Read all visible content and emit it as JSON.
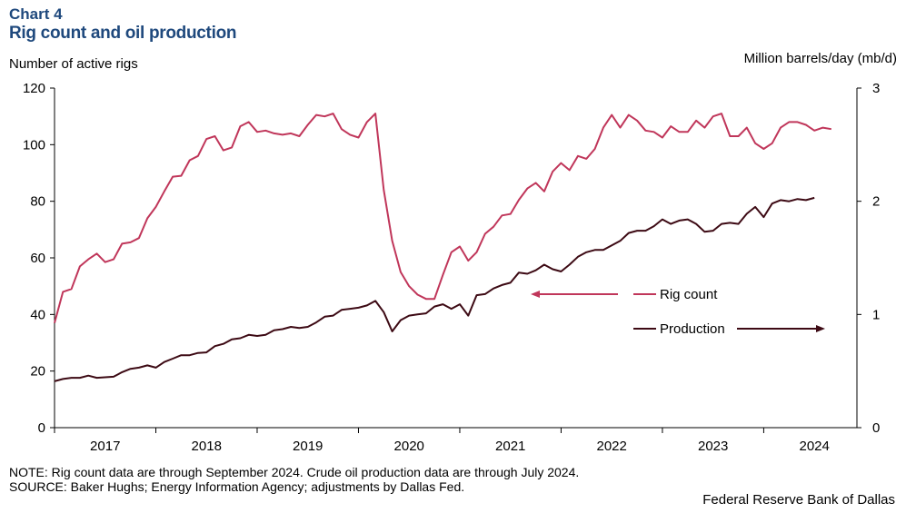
{
  "header": {
    "chart_number": "Chart 4",
    "title": "Rig count and oil production"
  },
  "axes": {
    "left_label": "Number of active rigs",
    "right_label": "Million barrels/day (mb/d)"
  },
  "footer": {
    "note": "NOTE: Rig count data are through September 2024. Crude oil production data are through July 2024.",
    "source": "SOURCE: Baker Hughs; Energy Information Agency; adjustments by Dallas Fed.",
    "credit": "Federal Reserve Bank of Dallas"
  },
  "colors": {
    "rig_count": "#c0365a",
    "production": "#3d0a14",
    "axis": "#000000"
  },
  "chart_data": {
    "type": "line",
    "title": "Rig count and oil production",
    "xlabel": "",
    "ylabel_left": "Number of active rigs",
    "ylabel_right": "Million barrels/day (mb/d)",
    "ylim_left": [
      0,
      120
    ],
    "ylim_right": [
      0,
      3
    ],
    "yticks_left": [
      "0",
      "20",
      "40",
      "60",
      "80",
      "100",
      "120"
    ],
    "yticks_right": [
      "0",
      "1",
      "2",
      "3"
    ],
    "xlim": [
      2017.0,
      2024.92
    ],
    "x_tick_labels": [
      "2017",
      "2018",
      "2019",
      "2020",
      "2021",
      "2022",
      "2023",
      "2024"
    ],
    "legend_position": "center-right",
    "annotations": [
      {
        "series": "Rig count",
        "arrow_direction": "left",
        "axis": "left"
      },
      {
        "series": "Production",
        "arrow_direction": "right",
        "axis": "right"
      }
    ],
    "series": [
      {
        "name": "Rig count",
        "axis": "left",
        "start": 2017.0,
        "step_months": 1,
        "values": [
          37,
          48,
          49,
          57,
          59.5,
          61.5,
          58.5,
          59.5,
          65,
          65.5,
          67,
          74,
          78,
          83.5,
          88.7,
          89,
          94.5,
          96,
          102,
          103,
          98,
          99,
          106.5,
          108,
          104.5,
          105,
          104,
          103.5,
          104,
          103,
          107,
          110.5,
          110,
          111,
          105.5,
          103.5,
          102.5,
          108,
          111,
          84,
          66,
          55,
          50,
          47,
          45.5,
          45.5,
          54,
          62,
          64,
          59,
          62,
          68.5,
          71,
          75,
          75.5,
          80.5,
          84.5,
          86.5,
          83.5,
          90.5,
          93.5,
          91,
          96,
          95,
          98.5,
          106,
          110.5,
          106,
          110.5,
          108.5,
          105,
          104.5,
          102.5,
          106.5,
          104.5,
          104.5,
          108.5,
          106,
          110,
          111,
          103,
          103,
          106,
          100.5,
          98.5,
          100.5,
          106,
          108,
          108,
          107,
          105,
          106,
          105.5
        ]
      },
      {
        "name": "Production",
        "axis": "right",
        "start": 2017.0,
        "step_months": 1,
        "values": [
          0.41,
          0.43,
          0.44,
          0.44,
          0.46,
          0.44,
          0.445,
          0.45,
          0.49,
          0.52,
          0.53,
          0.55,
          0.53,
          0.58,
          0.61,
          0.64,
          0.64,
          0.66,
          0.665,
          0.72,
          0.74,
          0.78,
          0.79,
          0.82,
          0.81,
          0.82,
          0.86,
          0.87,
          0.89,
          0.88,
          0.89,
          0.93,
          0.98,
          0.99,
          1.04,
          1.05,
          1.06,
          1.08,
          1.12,
          1.02,
          0.85,
          0.95,
          0.99,
          1.0,
          1.01,
          1.07,
          1.09,
          1.05,
          1.09,
          0.99,
          1.17,
          1.18,
          1.23,
          1.26,
          1.28,
          1.37,
          1.36,
          1.39,
          1.44,
          1.4,
          1.38,
          1.44,
          1.51,
          1.55,
          1.57,
          1.57,
          1.61,
          1.65,
          1.72,
          1.74,
          1.74,
          1.78,
          1.84,
          1.8,
          1.83,
          1.84,
          1.8,
          1.73,
          1.74,
          1.8,
          1.81,
          1.8,
          1.89,
          1.95,
          1.86,
          1.98,
          2.01,
          2.0,
          2.02,
          2.01,
          2.03
        ]
      }
    ]
  }
}
